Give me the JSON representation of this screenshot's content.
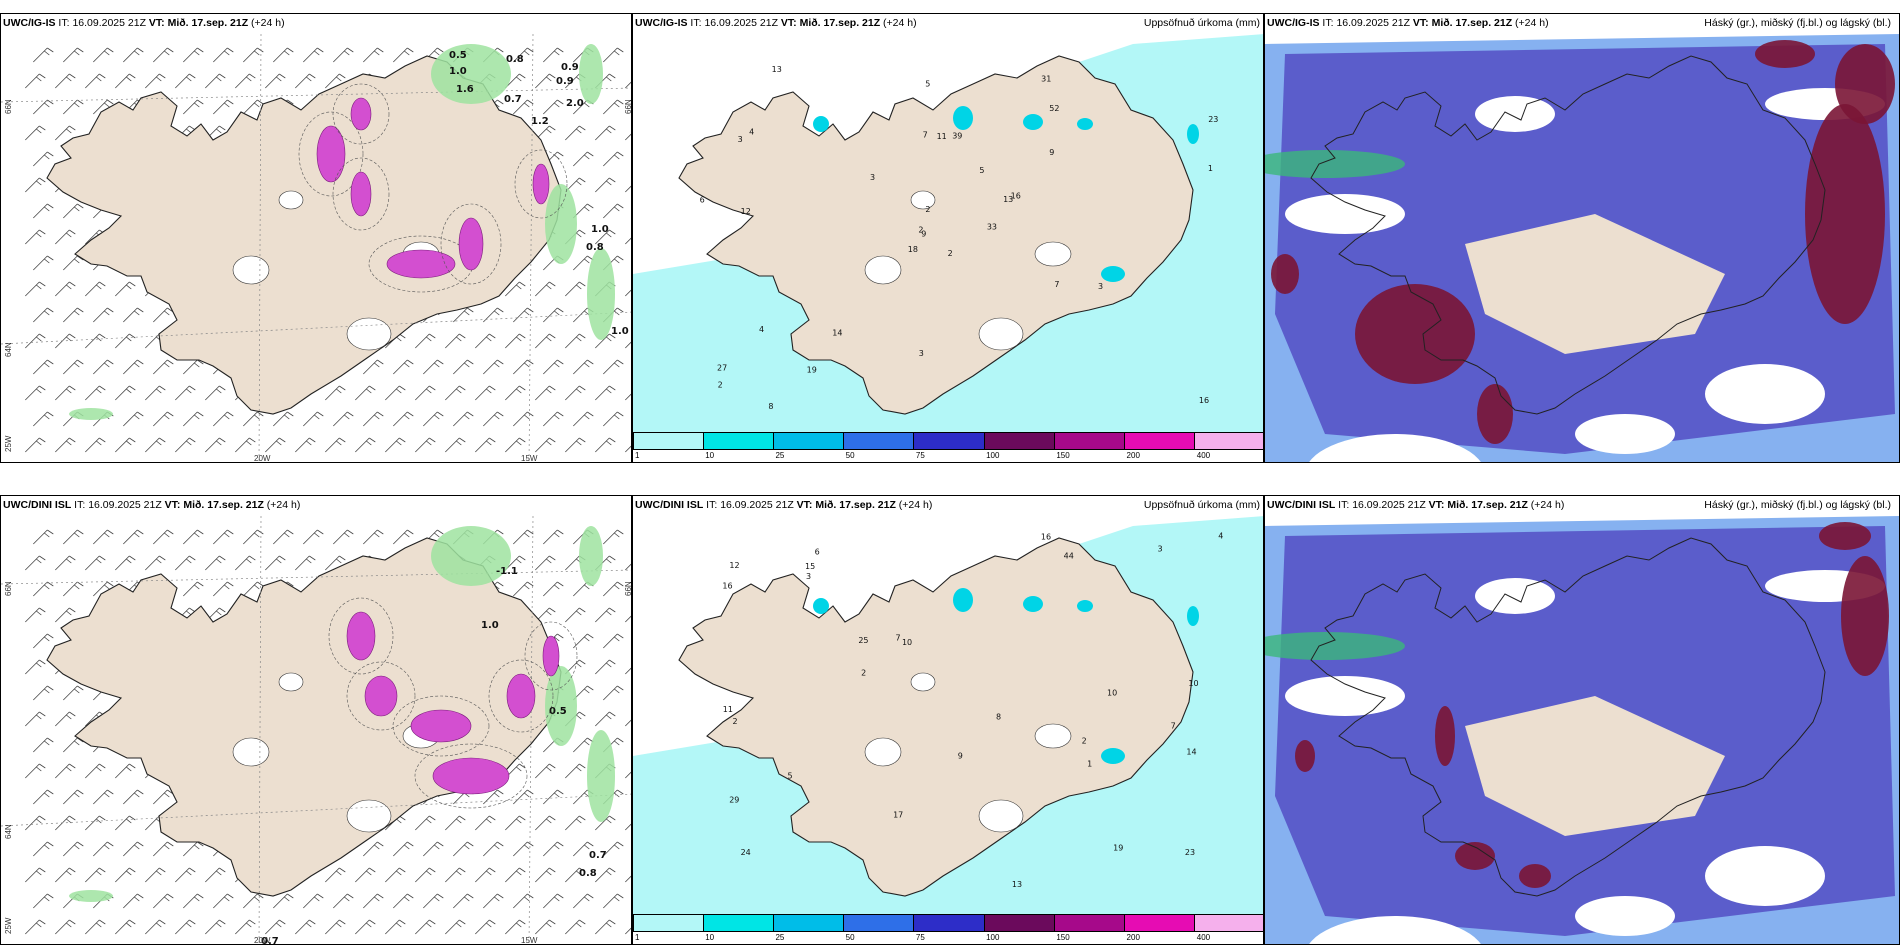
{
  "rows": [
    {
      "model": "UWC/IG-IS",
      "it_label": "IT:",
      "it_value": "16.09.2025 21Z",
      "vt_label": "VT:",
      "vt_value": "Mið. 17.sep. 21Z",
      "lead": "(+24 h)",
      "wind_labels": [
        "0.5",
        "1.0",
        "0.8",
        "0.7",
        "0.9",
        "2.0",
        "1.6",
        "0.9",
        "0.8",
        "1.0",
        "1.2",
        "1.0"
      ],
      "accum_numbers": [
        "2",
        "3",
        "9",
        "27",
        "13",
        "14",
        "31",
        "39",
        "52",
        "33",
        "13",
        "16",
        "12",
        "23",
        "18",
        "9",
        "8",
        "7",
        "5",
        "4",
        "3",
        "2",
        "19",
        "11",
        "16",
        "3",
        "4",
        "5",
        "6",
        "7",
        "1",
        "2",
        "3",
        "2"
      ]
    },
    {
      "model": "UWC/DINI ISL",
      "it_label": "IT:",
      "it_value": "16.09.2025 21Z",
      "vt_label": "VT:",
      "vt_value": "Mið. 17.sep. 21Z",
      "lead": "(+24 h)",
      "wind_labels": [
        "-1.1",
        "1.0",
        "0.5",
        "0.7",
        "0.8",
        "0.7"
      ],
      "accum_numbers": [
        "2",
        "7",
        "24",
        "6",
        "10",
        "19",
        "29",
        "44",
        "25",
        "13",
        "16",
        "11",
        "12",
        "23",
        "17",
        "10",
        "9",
        "8",
        "7",
        "5",
        "4",
        "3",
        "2",
        "14",
        "16",
        "15",
        "1",
        "2",
        "3",
        "10"
      ]
    }
  ],
  "accum_title": "Uppsöfnuð úrkoma (mm)",
  "cloud_title": "Háský (gr.), miðský (fj.bl.) og lágský (bl.)",
  "colorbar": {
    "ticks": [
      "1",
      "10",
      "25",
      "50",
      "75",
      "100",
      "150",
      "200",
      "400"
    ],
    "colors": [
      "#b3f7f7",
      "#00e5e5",
      "#00bde8",
      "#2e6fe8",
      "#2d2dc8",
      "#6b0a5c",
      "#a6098a",
      "#e60cb3",
      "#f5b0ec"
    ]
  },
  "axes": {
    "lat_labels": [
      "66N",
      "64N"
    ],
    "lat_right": "66N",
    "lon_labels": [
      "25W",
      "20W",
      "15W"
    ]
  },
  "colors": {
    "land": "#ecdfd0",
    "precip_light": "#b3f7f7",
    "precip_mid": "#8fe8ee",
    "precip_strong": "#00d4e6",
    "high_cloud": "#7a1535",
    "mid_cloud": "#5858c8",
    "low_cloud": "#79a9ee",
    "wind_green": "#9fe3a0",
    "snow_magenta": "#d34fd0"
  }
}
